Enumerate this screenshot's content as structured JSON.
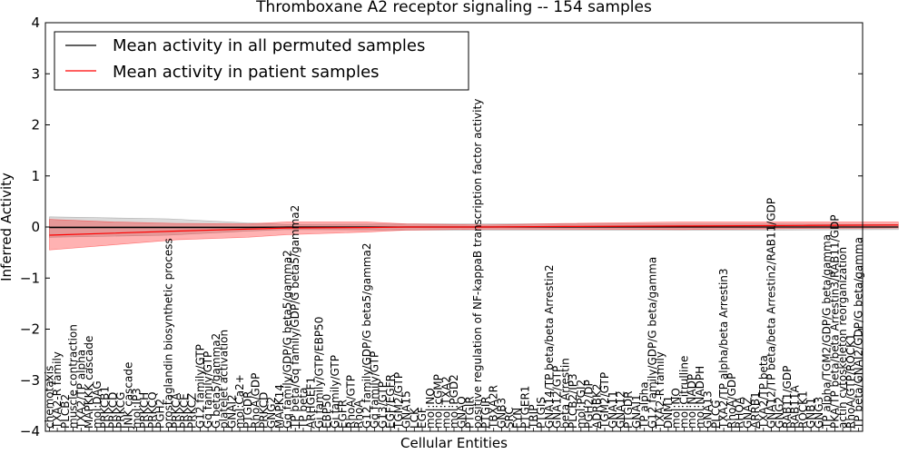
{
  "chart_data": {
    "type": "line",
    "title": "Thromboxane A2 receptor signaling -- 154 samples",
    "xlabel": "Cellular Entities",
    "ylabel": "Inferred Activity",
    "ylim": [
      -4,
      4
    ],
    "yticks": [
      -4,
      -3,
      -2,
      -1,
      0,
      1,
      2,
      3,
      4
    ],
    "ytick_labels": [
      "−4",
      "−3",
      "−2",
      "−1",
      "0",
      "1",
      "2",
      "3",
      "4"
    ],
    "grid": false,
    "legend_position": "top-left",
    "categories": [
      "chemotaxis",
      "TXA2-R family",
      "PLCB2",
      "muscle contraction",
      "TXA2/TP alpha",
      "MAPKKK cascade",
      "mol:DAG",
      "PRKCB1",
      "PRKCD",
      "PRKCG",
      "JNK cascade",
      "mol:IP3",
      "PRKCH",
      "PRKCQ",
      "PGH2",
      "prostaglandin biosynthetic process",
      "PRKCA",
      "PRKCE",
      "PRKCZ",
      "G12 family/GTP",
      "Gq family/GTP",
      "G beta5/gamma2",
      "platelet activation",
      "GNAI2",
      "mol:Ca2+",
      "PTGDR",
      "RhoA/GDP",
      "PRKCD",
      "GNG2",
      "MAPK14",
      "Gq family/GDP/G beta5/gamma2",
      "TP beta/Gq family/GDP/G beta5/gamma2",
      "TP beta",
      "ARHGEF1",
      "Gi family/GTP/EBP50",
      "EBP50",
      "Gi family/GTP",
      "EGFR",
      "RhoA/GTP",
      "RhoA",
      "G12 family/GDP/G beta5/gamma2",
      "Gq family/GTP",
      "G13/GTP",
      "EGF/EGFR",
      "TGM2/GTP",
      "GNA15",
      "LCK",
      "EGF",
      "mol:NO",
      "mol:cGMP",
      "mol:TXA2",
      "mol:PGD2",
      "GNAQ",
      "PTGIR",
      "positive regulation of NF-kappaB transcription factor activity",
      "PTGIR",
      "TBXA2R",
      "GNB3",
      "SRC",
      "FYN",
      "PTGER1",
      "TRIP",
      "PTGIS",
      "GNA14/TP beta/beta Arrestin2",
      "GNA12/GTP",
      "beta Arrestin",
      "PLCB2/IP3",
      "mol:PGI2",
      "PGH2/DP",
      "ADRBK2",
      "TGM2/GTP",
      "GNA11",
      "GNA12",
      "PTGDR",
      "GNAI1",
      "TP alpha",
      "G12 family/GDP/G beta/gamma",
      "TXA2-R family",
      "DNM1",
      "mol:NO",
      "mol:Citrulline",
      "mol:NADP",
      "mol:NADPH",
      "GNA13",
      "PLCG",
      "TXA2/TP alpha/beta Arrestin3",
      "RhoA/GDP",
      "RHOA",
      "GNAZ",
      "ARRB1",
      "TXA2/TP beta",
      "GNA12/TP beta/beta Arrestin2/RAB11/GDP",
      "GNG2",
      "RAB11/GDP",
      "RAB11A",
      "ROCK1",
      "GNB1",
      "GNG3",
      "TP alpha/TGM2/GDP/G beta/gamma",
      "PKA/TP beta/beta Arrestin3/RAB11/GDP",
      "actin cytoskeleton reorganization",
      "RhoA/GTP/ROCK1",
      "TP beta/GNAI2/GDP/G beta/gamma"
    ],
    "series": [
      {
        "name": "Mean activity in all permuted samples",
        "color": "#000000",
        "points": [
          [
            0,
            -0.01
          ],
          [
            15,
            -0.01
          ],
          [
            25,
            -0.01
          ],
          [
            30,
            0.0
          ],
          [
            50,
            0.0
          ],
          [
            70,
            0.0
          ],
          [
            90,
            0.0
          ],
          [
            107,
            0.0
          ]
        ],
        "band": [
          [
            0,
            -0.2,
            0.2
          ],
          [
            15,
            -0.16,
            0.16
          ],
          [
            25,
            -0.08,
            0.08
          ],
          [
            30,
            -0.05,
            0.05
          ],
          [
            50,
            -0.06,
            0.06
          ],
          [
            70,
            -0.06,
            0.06
          ],
          [
            90,
            -0.06,
            0.06
          ],
          [
            107,
            -0.05,
            0.05
          ]
        ]
      },
      {
        "name": "Mean activity in patient samples",
        "color": "#ff0000",
        "points": [
          [
            0,
            -0.16
          ],
          [
            8,
            -0.12
          ],
          [
            16,
            -0.08
          ],
          [
            25,
            -0.04
          ],
          [
            30,
            -0.02
          ],
          [
            40,
            -0.01
          ],
          [
            45,
            0.0
          ],
          [
            55,
            0.0
          ],
          [
            65,
            0.01
          ],
          [
            80,
            0.02
          ],
          [
            95,
            0.03
          ],
          [
            107,
            0.04
          ]
        ],
        "band": [
          [
            0,
            -0.45,
            0.15
          ],
          [
            8,
            -0.35,
            0.1
          ],
          [
            16,
            -0.25,
            0.07
          ],
          [
            25,
            -0.2,
            0.06
          ],
          [
            30,
            -0.15,
            0.1
          ],
          [
            40,
            -0.1,
            0.1
          ],
          [
            45,
            -0.06,
            0.06
          ],
          [
            55,
            -0.04,
            0.04
          ],
          [
            65,
            -0.04,
            0.07
          ],
          [
            80,
            -0.05,
            0.1
          ],
          [
            95,
            -0.03,
            0.1
          ],
          [
            107,
            -0.02,
            0.1
          ]
        ]
      }
    ]
  }
}
